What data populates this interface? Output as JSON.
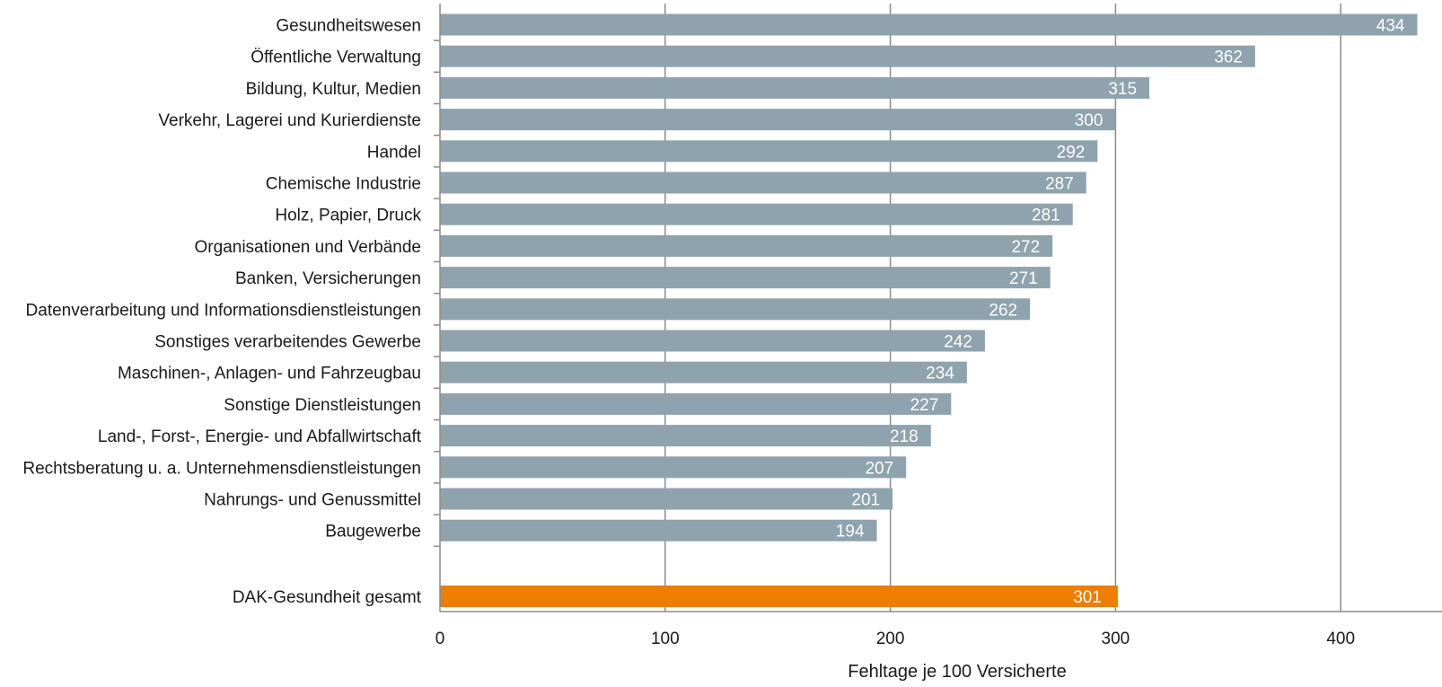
{
  "chart_data": {
    "type": "bar",
    "orientation": "horizontal",
    "title": "",
    "xlabel": "Fehltage je 100 Versicherte",
    "ylabel": "",
    "xlim": [
      0,
      434
    ],
    "x_ticks": [
      0,
      100,
      200,
      300,
      400
    ],
    "grid": "vertical",
    "legend": "none",
    "categories": [
      "Gesundheitswesen",
      "Öffentliche Verwaltung",
      "Bildung, Kultur, Medien",
      "Verkehr, Lagerei und Kurierdienste",
      "Handel",
      "Chemische Industrie",
      "Holz, Papier, Druck",
      "Organisationen und Verbände",
      "Banken, Versicherungen",
      "Datenverarbeitung und Informationsdienstleistungen",
      "Sonstiges verarbeitendes Gewerbe",
      "Maschinen-, Anlagen- und Fahrzeugbau",
      "Sonstige Dienstleistungen",
      "Land-, Forst-,  Energie- und Abfallwirtschaft",
      "Rechtsberatung u. a. Unternehmensdienstleistungen",
      "Nahrungs- und Genussmittel",
      "Baugewerbe"
    ],
    "values": [
      434,
      362,
      315,
      300,
      292,
      287,
      281,
      272,
      271,
      262,
      242,
      234,
      227,
      218,
      207,
      201,
      194
    ],
    "total": {
      "label": "DAK-Gesundheit gesamt",
      "value": 301
    },
    "colors": {
      "bar": "#8FA3AE",
      "total_bar": "#EF7D00",
      "value_label": "#ffffff",
      "text": "#1a1a1a",
      "grid": "#8c8c8c",
      "axis": "#8c8c8c"
    }
  }
}
